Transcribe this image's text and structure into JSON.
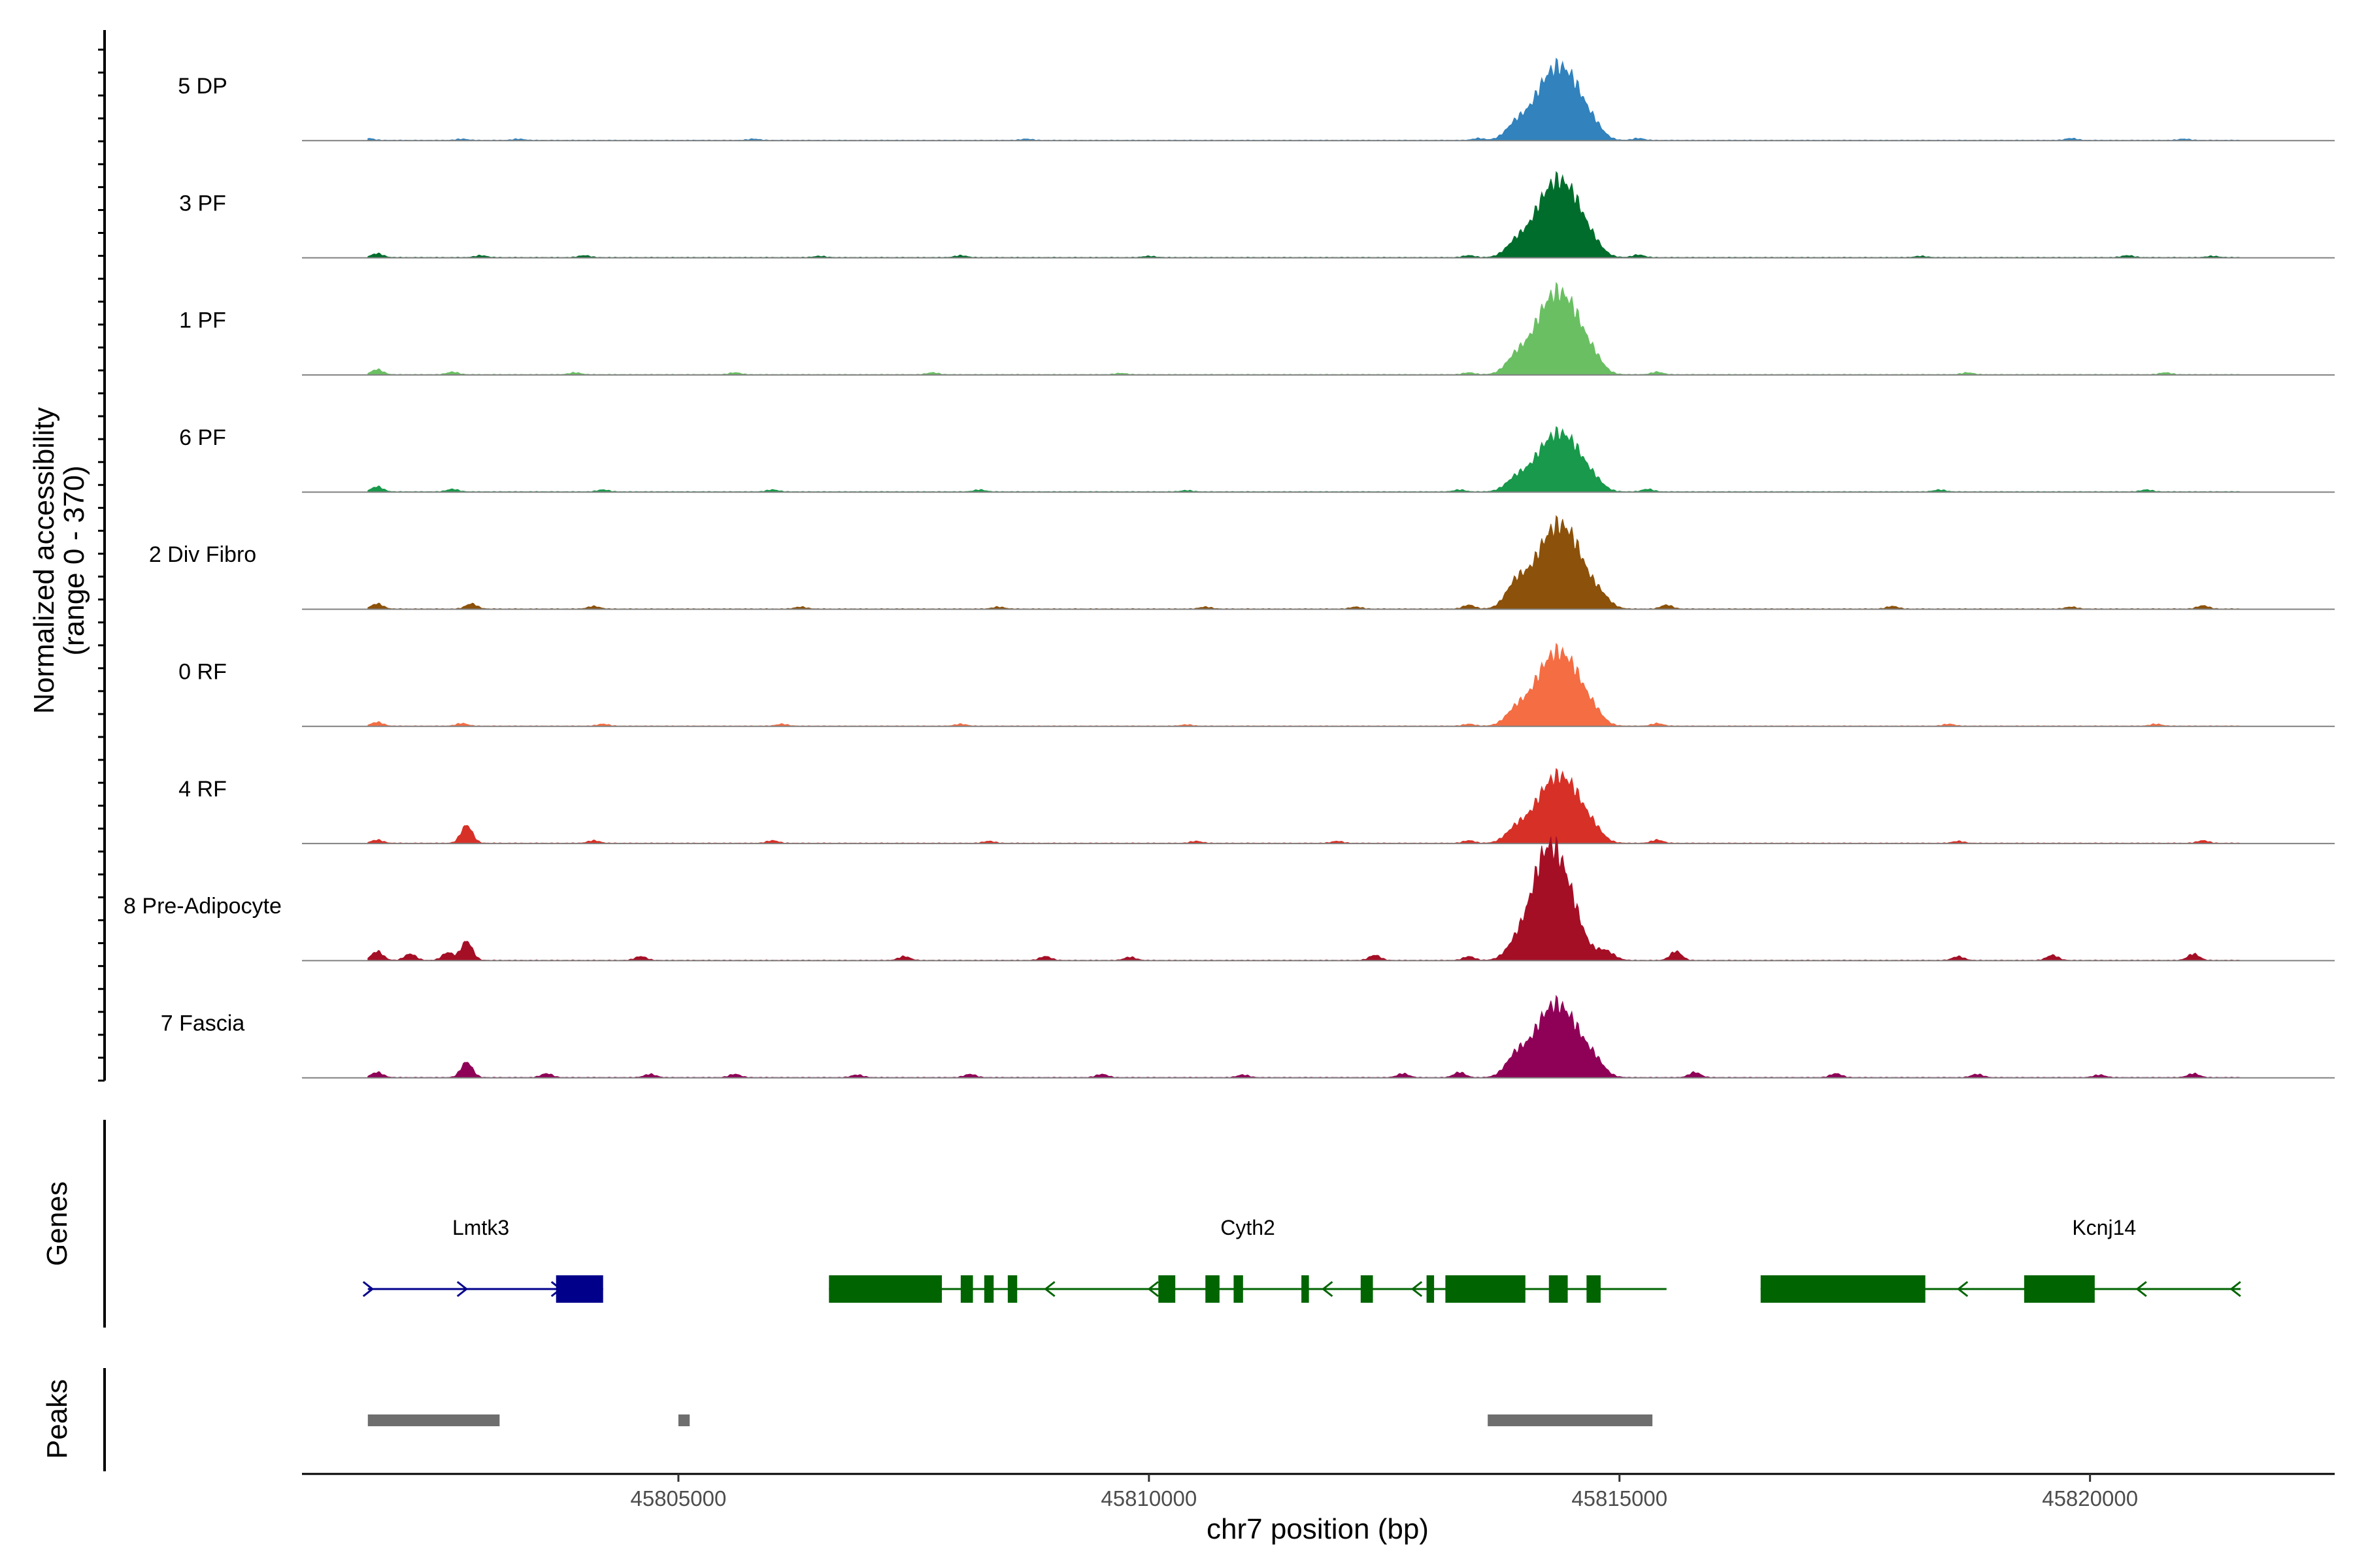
{
  "chart_data": {
    "type": "area",
    "chromosome": "chr7",
    "xlabel": "chr7 position (bp)",
    "ylabel_line1": "Normalized accessibility",
    "ylabel_line2": "(range 0 - 370)",
    "y_range": [
      0,
      370
    ],
    "x_range": [
      45801000,
      45822600
    ],
    "x_ticks": [
      45805000,
      45810000,
      45815000,
      45820000
    ],
    "x_tick_labels": [
      "45805000",
      "45810000",
      "45815000",
      "45820000"
    ],
    "grid": false,
    "tracks": [
      {
        "label": "5 DP",
        "color": "#3182BD",
        "peaks": [
          {
            "center": 45814240,
            "width": 170,
            "height": 84
          },
          {
            "center": 45814500,
            "width": 160,
            "height": 72
          },
          {
            "center": 45813900,
            "width": 110,
            "height": 22
          },
          {
            "center": 45814750,
            "width": 90,
            "height": 10
          }
        ],
        "small": [
          [
            45801700,
            3
          ],
          [
            45802700,
            2
          ],
          [
            45803300,
            2
          ],
          [
            45805800,
            2
          ],
          [
            45808700,
            2
          ],
          [
            45813500,
            3
          ],
          [
            45815200,
            3
          ],
          [
            45819800,
            3
          ],
          [
            45821000,
            2
          ]
        ]
      },
      {
        "label": "3 PF",
        "color": "#006D2C",
        "peaks": [
          {
            "center": 45814240,
            "width": 170,
            "height": 88
          },
          {
            "center": 45814500,
            "width": 160,
            "height": 75
          },
          {
            "center": 45813900,
            "width": 110,
            "height": 20
          },
          {
            "center": 45814750,
            "width": 90,
            "height": 8
          }
        ],
        "small": [
          [
            45801800,
            6
          ],
          [
            45802900,
            3
          ],
          [
            45804000,
            3
          ],
          [
            45806500,
            2
          ],
          [
            45808000,
            3
          ],
          [
            45810000,
            2
          ],
          [
            45813400,
            3
          ],
          [
            45815200,
            4
          ],
          [
            45818200,
            2
          ],
          [
            45820400,
            3
          ],
          [
            45821300,
            2
          ]
        ]
      },
      {
        "label": "1 PF",
        "color": "#6ABF63",
        "peaks": [
          {
            "center": 45814240,
            "width": 170,
            "height": 96
          },
          {
            "center": 45814500,
            "width": 160,
            "height": 78
          },
          {
            "center": 45813900,
            "width": 110,
            "height": 24
          },
          {
            "center": 45814750,
            "width": 90,
            "height": 12
          }
        ],
        "small": [
          [
            45801800,
            8
          ],
          [
            45802600,
            4
          ],
          [
            45803900,
            3
          ],
          [
            45805600,
            3
          ],
          [
            45807700,
            3
          ],
          [
            45809700,
            2
          ],
          [
            45813400,
            3
          ],
          [
            45815400,
            4
          ],
          [
            45818700,
            3
          ],
          [
            45820800,
            3
          ]
        ]
      },
      {
        "label": "6 PF",
        "color": "#18994B",
        "peaks": [
          {
            "center": 45814240,
            "width": 170,
            "height": 66
          },
          {
            "center": 45814500,
            "width": 160,
            "height": 58
          },
          {
            "center": 45813900,
            "width": 110,
            "height": 18
          },
          {
            "center": 45814750,
            "width": 90,
            "height": 8
          }
        ],
        "small": [
          [
            45801800,
            8
          ],
          [
            45802600,
            4
          ],
          [
            45804200,
            3
          ],
          [
            45806000,
            3
          ],
          [
            45808200,
            3
          ],
          [
            45810400,
            2
          ],
          [
            45813300,
            3
          ],
          [
            45815300,
            4
          ],
          [
            45818400,
            3
          ],
          [
            45820600,
            3
          ]
        ]
      },
      {
        "label": "2 Div Fibro",
        "color": "#8C510A",
        "peaks": [
          {
            "center": 45814240,
            "width": 170,
            "height": 94
          },
          {
            "center": 45814500,
            "width": 160,
            "height": 84
          },
          {
            "center": 45813900,
            "width": 110,
            "height": 36
          },
          {
            "center": 45814800,
            "width": 100,
            "height": 16
          }
        ],
        "small": [
          [
            45801800,
            8
          ],
          [
            45802800,
            8
          ],
          [
            45804100,
            4
          ],
          [
            45806300,
            3
          ],
          [
            45808400,
            3
          ],
          [
            45810600,
            3
          ],
          [
            45812200,
            3
          ],
          [
            45813400,
            6
          ],
          [
            45815500,
            6
          ],
          [
            45817900,
            4
          ],
          [
            45819800,
            3
          ],
          [
            45821200,
            5
          ]
        ]
      },
      {
        "label": "0 RF",
        "color": "#F46D43",
        "peaks": [
          {
            "center": 45814240,
            "width": 170,
            "height": 86
          },
          {
            "center": 45814500,
            "width": 160,
            "height": 70
          },
          {
            "center": 45813900,
            "width": 110,
            "height": 22
          },
          {
            "center": 45814750,
            "width": 90,
            "height": 10
          }
        ],
        "small": [
          [
            45801800,
            6
          ],
          [
            45802700,
            4
          ],
          [
            45804200,
            3
          ],
          [
            45806100,
            3
          ],
          [
            45808000,
            3
          ],
          [
            45810400,
            2
          ],
          [
            45813400,
            3
          ],
          [
            45815400,
            4
          ],
          [
            45818500,
            3
          ],
          [
            45820700,
            3
          ]
        ]
      },
      {
        "label": "4 RF",
        "color": "#D73027",
        "peaks": [
          {
            "center": 45814240,
            "width": 170,
            "height": 76
          },
          {
            "center": 45814500,
            "width": 160,
            "height": 66
          },
          {
            "center": 45813900,
            "width": 110,
            "height": 20
          },
          {
            "center": 45814750,
            "width": 90,
            "height": 10
          }
        ],
        "small": [
          [
            45801800,
            5
          ],
          [
            45802750,
            28
          ],
          [
            45804100,
            4
          ],
          [
            45806000,
            4
          ],
          [
            45808300,
            3
          ],
          [
            45810500,
            3
          ],
          [
            45812000,
            3
          ],
          [
            45813400,
            4
          ],
          [
            45815400,
            5
          ],
          [
            45818600,
            3
          ],
          [
            45821200,
            4
          ]
        ]
      },
      {
        "label": "8 Pre-Adipocyte",
        "color": "#A50F26",
        "peaks": [
          {
            "center": 45814210,
            "width": 160,
            "height": 150
          },
          {
            "center": 45814450,
            "width": 150,
            "height": 80
          },
          {
            "center": 45813900,
            "width": 110,
            "height": 20
          },
          {
            "center": 45814850,
            "width": 90,
            "height": 14
          }
        ],
        "small": [
          [
            45801800,
            14
          ],
          [
            45802150,
            10
          ],
          [
            45802550,
            12
          ],
          [
            45802750,
            30
          ],
          [
            45804600,
            6
          ],
          [
            45807400,
            6
          ],
          [
            45808900,
            6
          ],
          [
            45809800,
            5
          ],
          [
            45812400,
            8
          ],
          [
            45813400,
            6
          ],
          [
            45815600,
            14
          ],
          [
            45818600,
            6
          ],
          [
            45819600,
            8
          ],
          [
            45821100,
            10
          ]
        ]
      },
      {
        "label": "7 Fascia",
        "color": "#8F0157",
        "peaks": [
          {
            "center": 45814240,
            "width": 170,
            "height": 90
          },
          {
            "center": 45814500,
            "width": 160,
            "height": 62
          },
          {
            "center": 45813900,
            "width": 110,
            "height": 30
          },
          {
            "center": 45814750,
            "width": 100,
            "height": 16
          }
        ],
        "small": [
          [
            45801800,
            8
          ],
          [
            45802750,
            24
          ],
          [
            45803600,
            6
          ],
          [
            45804700,
            5
          ],
          [
            45805600,
            5
          ],
          [
            45806900,
            4
          ],
          [
            45808100,
            5
          ],
          [
            45809500,
            5
          ],
          [
            45811000,
            4
          ],
          [
            45812700,
            6
          ],
          [
            45813300,
            8
          ],
          [
            45815800,
            8
          ],
          [
            45817300,
            6
          ],
          [
            45818800,
            5
          ],
          [
            45820100,
            4
          ],
          [
            45821100,
            6
          ]
        ]
      }
    ],
    "genes_label": "Genes",
    "genes": [
      {
        "name": "Lmtk3",
        "color": "#00008B",
        "start": 45801700,
        "end": 45804200,
        "strand": "+",
        "exons": [
          [
            45803700,
            45804200
          ]
        ],
        "arrows": [
          45801700,
          45802700,
          45803700
        ]
      },
      {
        "name": "Cyth2",
        "color": "#006400",
        "start": 45806600,
        "end": 45815500,
        "strand": "-",
        "exons": [
          [
            45806600,
            45807800
          ],
          [
            45808000,
            45808130
          ],
          [
            45808250,
            45808350
          ],
          [
            45808500,
            45808600
          ],
          [
            45810100,
            45810280
          ],
          [
            45810600,
            45810750
          ],
          [
            45810900,
            45811000
          ],
          [
            45811620,
            45811700
          ],
          [
            45812250,
            45812380
          ],
          [
            45812950,
            45813030
          ],
          [
            45813150,
            45814000
          ],
          [
            45814250,
            45814450
          ],
          [
            45814650,
            45814800
          ]
        ],
        "arrows": [
          45808950,
          45810050,
          45811900,
          45812850
        ]
      },
      {
        "name": "Kcnj14",
        "color": "#006400",
        "start": 45816500,
        "end": 45821600,
        "strand": "-",
        "exons": [
          [
            45816500,
            45818250
          ],
          [
            45819300,
            45820050
          ]
        ],
        "arrows": [
          45818650,
          45820550,
          45821550
        ]
      }
    ],
    "peaks_label": "Peaks",
    "peak_regions": [
      [
        45801700,
        45803100
      ],
      [
        45805000,
        45805120
      ],
      [
        45813600,
        45815350
      ]
    ]
  }
}
